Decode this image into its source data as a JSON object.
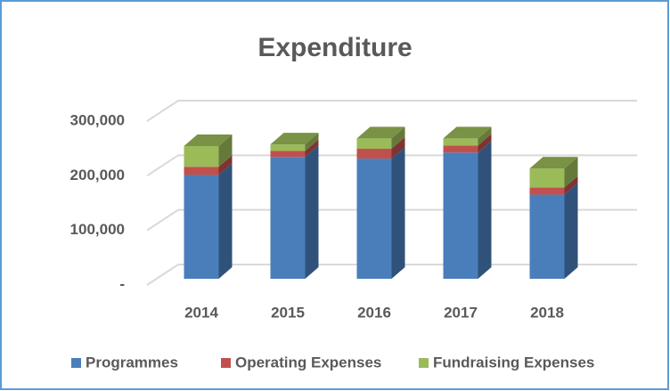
{
  "chart_data": {
    "type": "bar",
    "stacked": true,
    "title": "Expenditure",
    "categories": [
      "2014",
      "2015",
      "2016",
      "2017",
      "2018"
    ],
    "series": [
      {
        "name": "Programmes",
        "color": "#4a7ebb",
        "values": [
          190000,
          223000,
          220000,
          231000,
          154000
        ]
      },
      {
        "name": "Operating Expenses",
        "color": "#c0504d",
        "values": [
          15000,
          11000,
          18000,
          13000,
          13000
        ]
      },
      {
        "name": "Fundraising Expenses",
        "color": "#9bbb59",
        "values": [
          38000,
          12000,
          19000,
          13000,
          35000
        ]
      }
    ],
    "ylim": [
      0,
      300000
    ],
    "yticks": [
      {
        "value": 0,
        "label": "-"
      },
      {
        "value": 100000,
        "label": "100,000"
      },
      {
        "value": 200000,
        "label": "200,000"
      },
      {
        "value": 300000,
        "label": "300,000"
      }
    ],
    "grid": true,
    "legend": "bottom"
  }
}
